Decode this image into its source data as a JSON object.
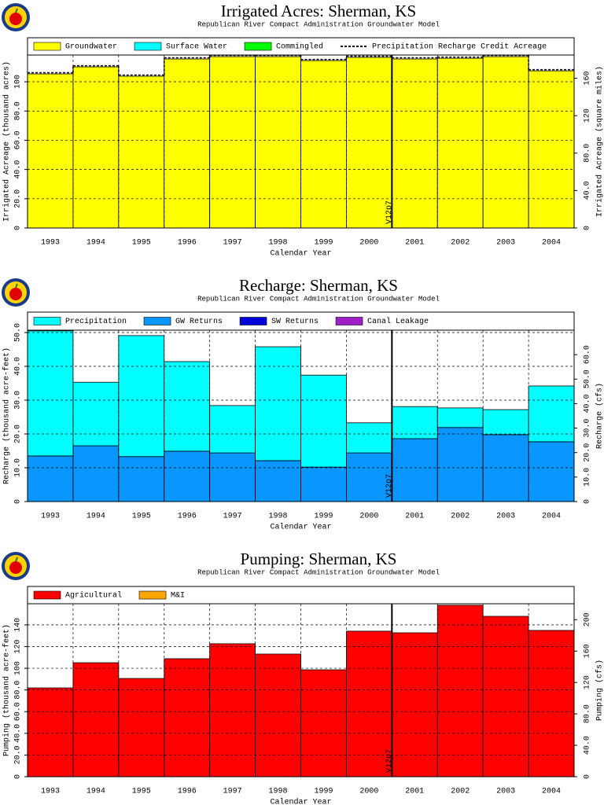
{
  "chart_data": [
    {
      "type": "bar",
      "stacked": true,
      "title": "Irrigated Acres:  Sherman,  KS",
      "subtitle": "Republican River Compact Administration Groundwater Model",
      "xlabel": "Calendar Year",
      "ylabel": "Irrigated Acreage (thousand acres)",
      "y2label": "Irrigated Acreage (square miles)",
      "x": [
        1993,
        1994,
        1995,
        1996,
        1997,
        1998,
        1999,
        2000,
        2001,
        2002,
        2003,
        2004
      ],
      "xlim": [
        1992.5,
        2004.5
      ],
      "ylim": [
        0,
        118.3
      ],
      "yticks": [
        0,
        {
          "value": 20,
          "label": "20.0"
        },
        {
          "value": 40,
          "label": "40.0"
        },
        {
          "value": 60,
          "label": "60.0"
        },
        {
          "value": 80,
          "label": "80.0"
        },
        100
      ],
      "y2lim": [
        0,
        184.8
      ],
      "y2ticks": [
        0,
        {
          "value": 40,
          "label": "40.0"
        },
        {
          "value": 80,
          "label": "80.0"
        },
        120,
        160
      ],
      "grid": true,
      "annotation": {
        "text": "V12p7",
        "x": 2000.5
      },
      "series": [
        {
          "name": "Groundwater",
          "color": "#ffff00",
          "values": [
            105.4,
            110.2,
            103.8,
            115.6,
            117.2,
            117.2,
            114.5,
            116.7,
            115.6,
            116.1,
            117.2,
            107.5
          ]
        },
        {
          "name": "Surface Water",
          "color": "#00ffff",
          "values": [
            0,
            0,
            0,
            0,
            0,
            0,
            0,
            0,
            0,
            0,
            0,
            0
          ]
        },
        {
          "name": "Commingled",
          "color": "#00ff00",
          "values": [
            0,
            0,
            0,
            0,
            0,
            0,
            0,
            0,
            0,
            0,
            0,
            0
          ]
        },
        {
          "name": "Precipitation Recharge Credit Acreage",
          "color": "#000000",
          "type": "line",
          "values": [
            106.2,
            111.0,
            104.6,
            116.4,
            118.0,
            118.0,
            115.3,
            117.5,
            116.4,
            116.9,
            118.0,
            108.3
          ]
        }
      ]
    },
    {
      "type": "bar",
      "stacked": true,
      "title": "Recharge:  Sherman,  KS",
      "subtitle": "Republican River Compact Administration Groundwater Model",
      "xlabel": "Calendar Year",
      "ylabel": "Recharge (thousand acre-feet)",
      "y2label": "Recharge (cfs)",
      "x": [
        1993,
        1994,
        1995,
        1996,
        1997,
        1998,
        1999,
        2000,
        2001,
        2002,
        2003,
        2004
      ],
      "xlim": [
        1992.5,
        2004.5
      ],
      "ylim": [
        0,
        50.7
      ],
      "yticks": [
        0,
        {
          "value": 10,
          "label": "10.0"
        },
        {
          "value": 20,
          "label": "20.0"
        },
        {
          "value": 30,
          "label": "30.0"
        },
        {
          "value": 40,
          "label": "40.0"
        },
        {
          "value": 50,
          "label": "50.0"
        }
      ],
      "y2lim": [
        0,
        70.0
      ],
      "y2ticks": [
        0,
        {
          "value": 10,
          "label": "10.0"
        },
        {
          "value": 20,
          "label": "20.0"
        },
        {
          "value": 30,
          "label": "30.0"
        },
        {
          "value": 40,
          "label": "40.0"
        },
        {
          "value": 50,
          "label": "50.0"
        },
        {
          "value": 60,
          "label": "60.0"
        }
      ],
      "grid": true,
      "annotation": {
        "text": "V12p7",
        "x": 2000.5
      },
      "series": [
        {
          "name": "Precipitation",
          "color": "#00ffff",
          "values": [
            37.0,
            18.8,
            35.8,
            26.5,
            14.0,
            33.7,
            27.2,
            8.9,
            9.5,
            5.8,
            7.4,
            16.5
          ]
        },
        {
          "name": "GW Returns",
          "color": "#0a96ff",
          "values": [
            13.5,
            16.5,
            13.3,
            14.9,
            14.4,
            12.1,
            10.2,
            14.4,
            18.6,
            21.9,
            19.8,
            17.7
          ]
        },
        {
          "name": "SW Returns",
          "color": "#0000d8",
          "values": [
            0,
            0,
            0,
            0,
            0,
            0,
            0,
            0,
            0,
            0,
            0,
            0
          ]
        },
        {
          "name": "Canal Leakage",
          "color": "#a020c8",
          "values": [
            0,
            0,
            0,
            0,
            0,
            0,
            0,
            0,
            0,
            0,
            0,
            0
          ]
        }
      ]
    },
    {
      "type": "bar",
      "stacked": true,
      "title": "Pumping:  Sherman,  KS",
      "subtitle": "Republican River Compact Administration Groundwater Model",
      "xlabel": "Calendar Year",
      "ylabel": "Pumping (thousand acre-feet)",
      "y2label": "Pumping (cfs)",
      "x": [
        1993,
        1994,
        1995,
        1996,
        1997,
        1998,
        1999,
        2000,
        2001,
        2002,
        2003,
        2004
      ],
      "xlim": [
        1992.5,
        2004.5
      ],
      "ylim": [
        0,
        159.5
      ],
      "yticks": [
        0,
        {
          "value": 20,
          "label": "20.0"
        },
        {
          "value": 40,
          "label": "40.0"
        },
        {
          "value": 60,
          "label": "60.0"
        },
        {
          "value": 80,
          "label": "80.0"
        },
        100,
        120,
        140
      ],
      "y2lim": [
        0,
        220.3
      ],
      "y2ticks": [
        0,
        {
          "value": 40,
          "label": "40.0"
        },
        {
          "value": 80,
          "label": "80.0"
        },
        120,
        160,
        200
      ],
      "grid": true,
      "annotation": {
        "text": "V12p7",
        "x": 2000.5
      },
      "series": [
        {
          "name": "Agricultural",
          "color": "#ff0000",
          "values": [
            81.9,
            105.1,
            90.6,
            108.8,
            122.6,
            113.1,
            98.6,
            134.2,
            132.7,
            158.1,
            147.9,
            134.9
          ]
        },
        {
          "name": "M&I",
          "color": "#ffa500",
          "values": [
            0,
            0,
            0,
            0,
            0,
            0,
            0,
            0,
            0,
            0,
            0,
            0
          ]
        }
      ]
    }
  ]
}
